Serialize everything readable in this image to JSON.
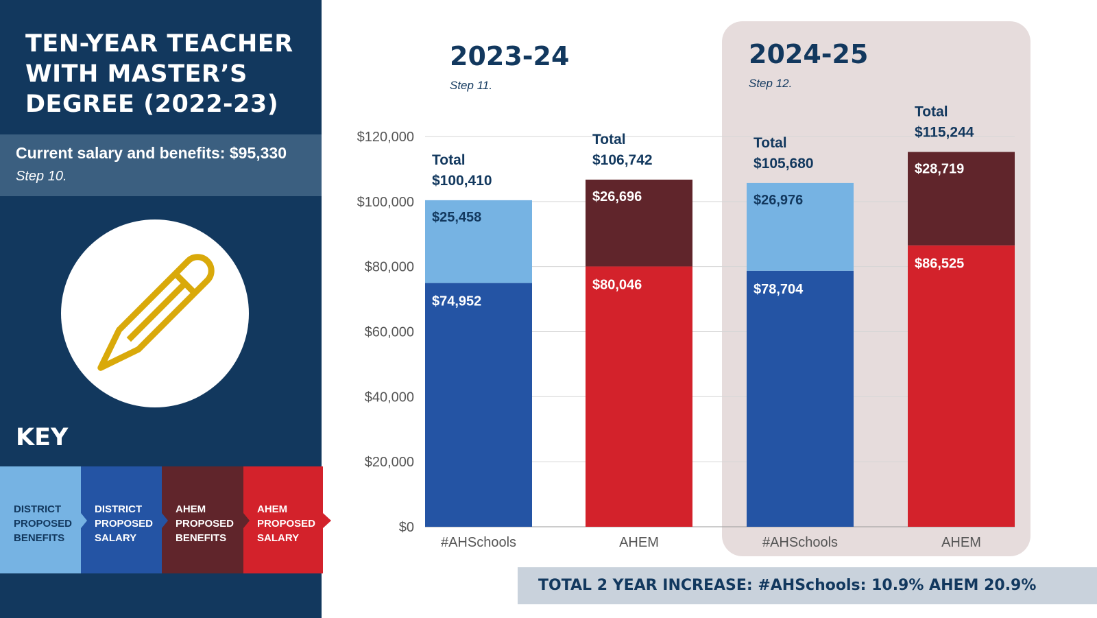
{
  "sidebar": {
    "title_lines": [
      "TEN-YEAR TEACHER",
      "WITH MASTER’S",
      "DEGREE (2022-23)"
    ],
    "current": "Current salary and benefits: $95,330",
    "current_step": "Step 10.",
    "key_title": "KEY",
    "key_items": [
      {
        "label": "DISTRICT PROPOSED BENEFITS",
        "color": "#76b3e3"
      },
      {
        "label": "DISTRICT PROPOSED SALARY",
        "color": "#2454a4"
      },
      {
        "label": "AHEM PROPOSED BENEFITS",
        "color": "#60252b"
      },
      {
        "label": "AHEM PROPOSED SALARY",
        "color": "#d3222b"
      }
    ]
  },
  "periods": [
    {
      "year": "2023-24",
      "step": "Step 11."
    },
    {
      "year": "2024-25",
      "step": "Step 12."
    }
  ],
  "banner": "TOTAL 2 YEAR INCREASE:  #AHSchools: 10.9%  AHEM 20.9%",
  "chart_data": {
    "type": "bar",
    "stacked": true,
    "categories": [
      "#AHSchools",
      "AHEM",
      "#AHSchools",
      "AHEM"
    ],
    "series": [
      {
        "name": "Salary",
        "values": [
          74952,
          80046,
          78704,
          86525
        ],
        "labels": [
          "$74,952",
          "$80,046",
          "$78,704",
          "$86,525"
        ]
      },
      {
        "name": "Benefits",
        "values": [
          25458,
          26696,
          26976,
          28719
        ],
        "labels": [
          "$25,458",
          "$26,696",
          "$26,976",
          "$28,719"
        ]
      }
    ],
    "totals": [
      {
        "word": "Total",
        "value": "$100,410"
      },
      {
        "word": "Total",
        "value": "$106,742"
      },
      {
        "word": "Total",
        "value": "$105,680"
      },
      {
        "word": "Total",
        "value": "$115,244"
      }
    ],
    "salary_colors": [
      "#2454a4",
      "#d3222b",
      "#2454a4",
      "#d3222b"
    ],
    "benefit_colors": [
      "#76b3e3",
      "#60252b",
      "#76b3e3",
      "#60252b"
    ],
    "ylim": [
      0,
      120000
    ],
    "yticks": [
      0,
      20000,
      40000,
      60000,
      80000,
      100000,
      120000
    ],
    "ytick_labels": [
      "$0",
      "$20,000",
      "$40,000",
      "$60,000",
      "$80,000",
      "$100,000",
      "$120,000"
    ]
  }
}
